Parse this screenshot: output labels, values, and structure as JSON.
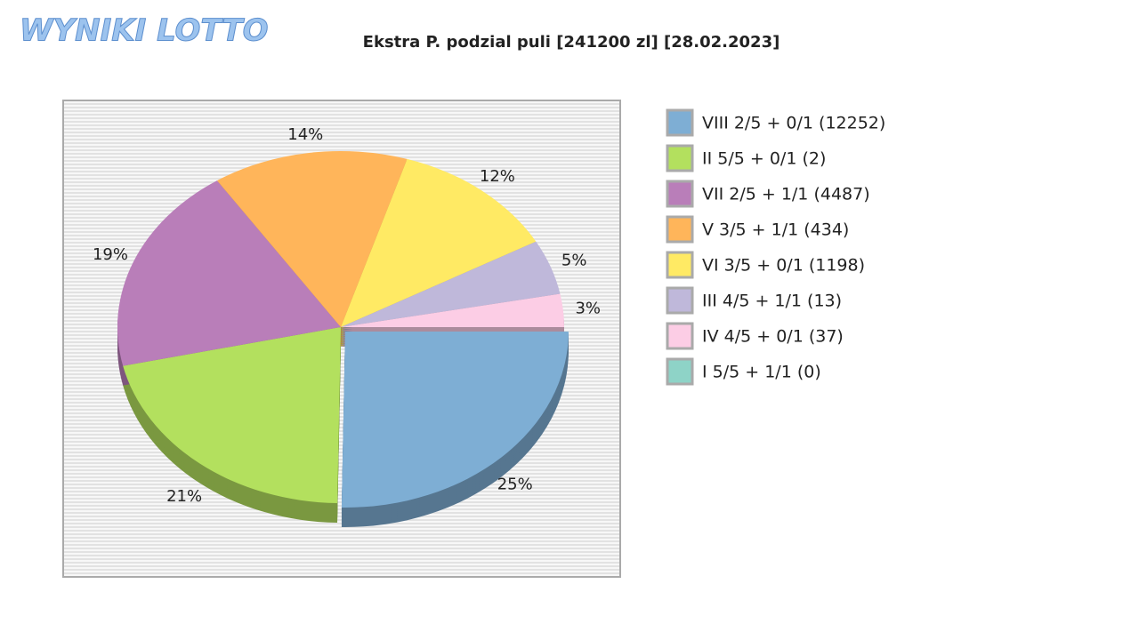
{
  "logo": "WYNIKI LOTTO",
  "chart_data": {
    "type": "pie",
    "title": "Ekstra P. podzial puli [241200 zl] [28.02.2023]",
    "categories": [
      "VIII 2/5 + 0/1 (12252)",
      "II 5/5 + 0/1 (2)",
      "VII 2/5 + 1/1 (4487)",
      "V 3/5 + 1/1 (434)",
      "VI 3/5 + 0/1 (1198)",
      "III 4/5 + 1/1 (13)",
      "IV 4/5 + 0/1 (37)",
      "I 5/5 + 1/1 (0)"
    ],
    "values": [
      25,
      21,
      19,
      14,
      12,
      5,
      3,
      0
    ],
    "value_labels": [
      "25%",
      "21%",
      "19%",
      "14%",
      "12%",
      "5%",
      "3%",
      null
    ],
    "colors": [
      "#7eaed4",
      "#b3e05e",
      "#b97eb9",
      "#ffb55a",
      "#ffea64",
      "#bfb8da",
      "#fccde5",
      "#8ed3c7"
    ],
    "legend": "right"
  }
}
